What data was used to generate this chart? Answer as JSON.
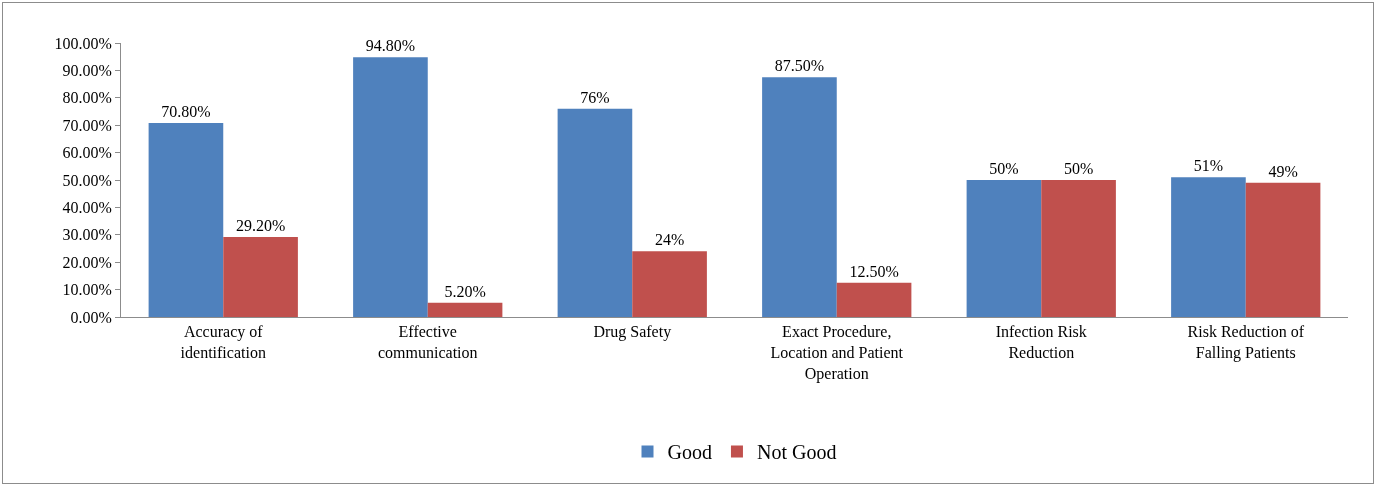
{
  "chart_data": {
    "type": "bar",
    "categories": [
      "Accuracy of identification",
      "Effective communication",
      "Drug Safety",
      "Exact Procedure, Location and Patient Operation",
      "Infection Risk Reduction",
      "Risk Reduction of Falling Patients"
    ],
    "series": [
      {
        "name": "Good",
        "color": "#4f81bd",
        "values": [
          70.8,
          94.8,
          76,
          87.5,
          50,
          51
        ],
        "value_labels": [
          "70.80%",
          "94.80%",
          "76%",
          "87.50%",
          "50%",
          "51%"
        ]
      },
      {
        "name": "Not Good",
        "color": "#c0504d",
        "values": [
          29.2,
          5.2,
          24,
          12.5,
          50,
          49
        ],
        "value_labels": [
          "29.20%",
          "5.20%",
          "24%",
          "12.50%",
          "50%",
          "49%"
        ]
      }
    ],
    "ylim": [
      0,
      100
    ],
    "yticks": [
      {
        "value": 0,
        "label": "0.00%"
      },
      {
        "value": 10,
        "label": "10.00%"
      },
      {
        "value": 20,
        "label": "20.00%"
      },
      {
        "value": 30,
        "label": "30.00%"
      },
      {
        "value": 40,
        "label": "40.00%"
      },
      {
        "value": 50,
        "label": "50.00%"
      },
      {
        "value": 60,
        "label": "60.00%"
      },
      {
        "value": 70,
        "label": "70.00%"
      },
      {
        "value": 80,
        "label": "80.00%"
      },
      {
        "value": 90,
        "label": "90.00%"
      },
      {
        "value": 100,
        "label": "100.00%"
      }
    ],
    "grid": false,
    "legend": "bottom"
  }
}
